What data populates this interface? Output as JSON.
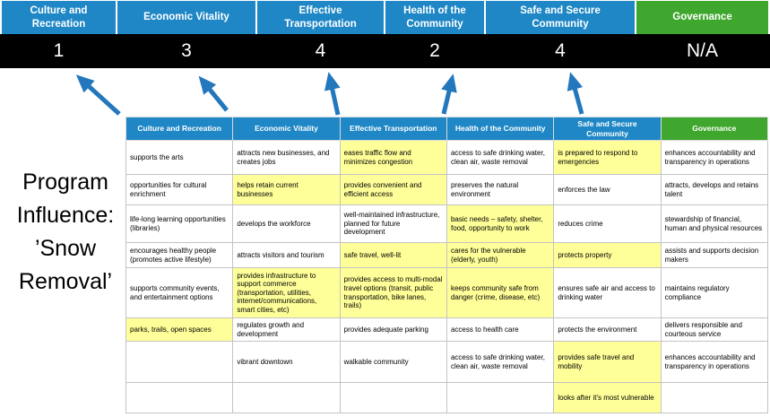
{
  "colors": {
    "blue": "#1f87c5",
    "green": "#3fa72d",
    "yellow": "#ffff99",
    "bar": "#000000",
    "arrow": "#2277bd"
  },
  "title": {
    "lines": [
      "Program",
      "Influence:",
      "’Snow",
      "Removal’"
    ]
  },
  "summary": {
    "columns": [
      {
        "label": "Culture and Recreation",
        "score": "1",
        "color": "blue"
      },
      {
        "label": "Economic Vitality",
        "score": "3",
        "color": "blue"
      },
      {
        "label": "Effective Transportation",
        "score": "4",
        "color": "blue"
      },
      {
        "label": "Health of the Community",
        "score": "2",
        "color": "blue"
      },
      {
        "label": "Safe and Secure Community",
        "score": "4",
        "color": "blue"
      },
      {
        "label": "Governance",
        "score": "N/A",
        "color": "green"
      }
    ]
  },
  "matrix": {
    "headers": [
      {
        "label": "Culture and Recreation",
        "color": "blue"
      },
      {
        "label": "Economic Vitality",
        "color": "blue"
      },
      {
        "label": "Effective Transportation",
        "color": "blue"
      },
      {
        "label": "Health of the Community",
        "color": "blue"
      },
      {
        "label": "Safe and Secure Community",
        "color": "blue"
      },
      {
        "label": "Governance",
        "color": "green"
      }
    ],
    "rows": [
      [
        {
          "text": "supports the arts",
          "highlight": false
        },
        {
          "text": "attracts new businesses, and creates jobs",
          "highlight": false
        },
        {
          "text": "eases traffic flow and minimizes congestion",
          "highlight": true
        },
        {
          "text": "access to safe drinking water, clean air, waste removal",
          "highlight": false
        },
        {
          "text": "is prepared to respond to emergencies",
          "highlight": true
        },
        {
          "text": "enhances accountability and transparency in operations",
          "highlight": false
        }
      ],
      [
        {
          "text": "opportunities for cultural enrichment",
          "highlight": false
        },
        {
          "text": "helps retain current businesses",
          "highlight": true
        },
        {
          "text": "provides convenient and efficient access",
          "highlight": true
        },
        {
          "text": "preserves the natural environment",
          "highlight": false
        },
        {
          "text": "enforces the law",
          "highlight": false
        },
        {
          "text": "attracts, develops and retains talent",
          "highlight": false
        }
      ],
      [
        {
          "text": "life-long learning opportunities (libraries)",
          "highlight": false
        },
        {
          "text": "develops the workforce",
          "highlight": false
        },
        {
          "text": "well-maintained infrastructure, planned for future development",
          "highlight": false
        },
        {
          "text": "basic needs – safety, shelter, food, opportunity to work",
          "highlight": true
        },
        {
          "text": "reduces crime",
          "highlight": false
        },
        {
          "text": "stewardship of financial, human and physical resources",
          "highlight": false
        }
      ],
      [
        {
          "text": "encourages healthy people (promotes active lifestyle)",
          "highlight": false
        },
        {
          "text": "attracts visitors and tourism",
          "highlight": false
        },
        {
          "text": "safe travel, well-lit",
          "highlight": true
        },
        {
          "text": "cares for the vulnerable (elderly, youth)",
          "highlight": true
        },
        {
          "text": "protects property",
          "highlight": true
        },
        {
          "text": "assists and supports decision makers",
          "highlight": false
        }
      ],
      [
        {
          "text": "supports community events, and entertainment options",
          "highlight": false
        },
        {
          "text": "provides infrastructure to support commerce (transportation, utilities, internet/communications, smart cities, etc)",
          "highlight": true
        },
        {
          "text": "provides access to multi-modal travel options (transit, public transportation, bike lanes, trails)",
          "highlight": true
        },
        {
          "text": "keeps community safe from danger (crime, disease, etc)",
          "highlight": true
        },
        {
          "text": "ensures safe air and access to drinking water",
          "highlight": false
        },
        {
          "text": "maintains regulatory compliance",
          "highlight": false
        }
      ],
      [
        {
          "text": "parks, trails, open spaces",
          "highlight": true
        },
        {
          "text": "regulates growth and development",
          "highlight": false
        },
        {
          "text": "provides adequate parking",
          "highlight": false
        },
        {
          "text": "access to health care",
          "highlight": false
        },
        {
          "text": "protects the environment",
          "highlight": false
        },
        {
          "text": "delivers responsible and courteous service",
          "highlight": false
        }
      ],
      [
        {
          "text": "",
          "highlight": false
        },
        {
          "text": "vibrant downtown",
          "highlight": false
        },
        {
          "text": "walkable community",
          "highlight": false
        },
        {
          "text": "access to safe drinking water, clean air, waste removal",
          "highlight": false
        },
        {
          "text": "provides safe travel and mobility",
          "highlight": true
        },
        {
          "text": "enhances accountability and transparency in operations",
          "highlight": false
        }
      ],
      [
        {
          "text": "",
          "highlight": false
        },
        {
          "text": "",
          "highlight": false
        },
        {
          "text": "",
          "highlight": false
        },
        {
          "text": "",
          "highlight": false
        },
        {
          "text": "looks after it's most vulnerable",
          "highlight": true
        },
        {
          "text": "",
          "highlight": false
        }
      ]
    ]
  }
}
